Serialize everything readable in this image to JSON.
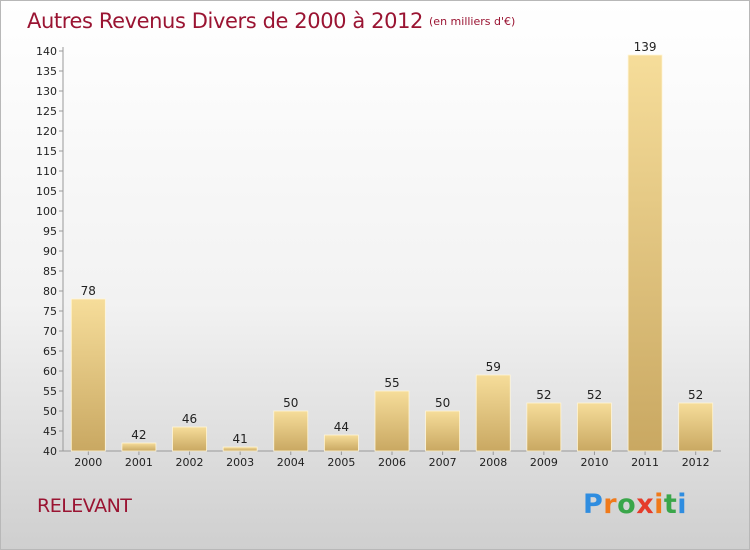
{
  "header": {
    "title": "Autres Revenus Divers de 2000 à 2012",
    "subtitle": "(en milliers d'€)"
  },
  "footer": {
    "town": "RELEVANT",
    "logo": "Proxiti"
  },
  "colors": {
    "title": "#9a1432",
    "bar_top": "#f6dd9a",
    "bar_bottom": "#c9a862",
    "axis": "#999999"
  },
  "chart_data": {
    "type": "bar",
    "categories": [
      "2000",
      "2001",
      "2002",
      "2003",
      "2004",
      "2005",
      "2006",
      "2007",
      "2008",
      "2009",
      "2010",
      "2011",
      "2012"
    ],
    "values": [
      78,
      42,
      46,
      41,
      50,
      44,
      55,
      50,
      59,
      52,
      52,
      139,
      52
    ],
    "title": "Autres Revenus Divers de 2000 à 2012",
    "subtitle": "(en milliers d'€)",
    "xlabel": "",
    "ylabel": "",
    "ylim": [
      40,
      140
    ],
    "yticks": [
      40,
      45,
      50,
      55,
      60,
      65,
      70,
      75,
      80,
      85,
      90,
      95,
      100,
      105,
      110,
      115,
      120,
      125,
      130,
      135,
      140
    ],
    "grid": false,
    "legend": "none"
  }
}
